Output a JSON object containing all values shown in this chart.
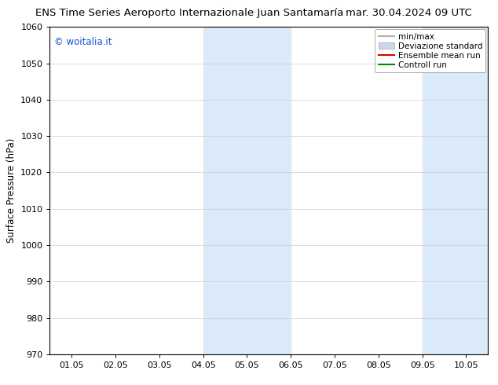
{
  "title_left": "ENS Time Series Aeroporto Internazionale Juan Santamaría",
  "title_right": "mar. 30.04.2024 09 UTC",
  "ylabel": "Surface Pressure (hPa)",
  "ylim": [
    970,
    1060
  ],
  "yticks": [
    970,
    980,
    990,
    1000,
    1010,
    1020,
    1030,
    1040,
    1050,
    1060
  ],
  "xtick_labels": [
    "01.05",
    "02.05",
    "03.05",
    "04.05",
    "05.05",
    "06.05",
    "07.05",
    "08.05",
    "09.05",
    "10.05"
  ],
  "xtick_positions": [
    0,
    1,
    2,
    3,
    4,
    5,
    6,
    7,
    8,
    9
  ],
  "xlim": [
    -0.5,
    9.5
  ],
  "shaded_bands": [
    {
      "x_start": 3.0,
      "x_end": 5.0,
      "color": "#daeaf8",
      "alpha": 1.0
    },
    {
      "x_start": 8.0,
      "x_end": 9.5,
      "color": "#daeaf8",
      "alpha": 1.0
    }
  ],
  "legend_entries": [
    {
      "label": "min/max",
      "color": "#b0b0b0",
      "lw": 1.5,
      "patch": false
    },
    {
      "label": "Deviazione standard",
      "color": "#c8d8e8",
      "lw": 8,
      "patch": true
    },
    {
      "label": "Ensemble mean run",
      "color": "#dd0000",
      "lw": 1.5,
      "patch": false
    },
    {
      "label": "Controll run",
      "color": "#008800",
      "lw": 1.5,
      "patch": false
    }
  ],
  "watermark": "© woitalia.it",
  "watermark_color": "#1155cc",
  "background_color": "#ffffff",
  "plot_bg_color": "#ffffff",
  "title_fontsize": 9.5,
  "axis_label_fontsize": 8.5,
  "tick_fontsize": 8,
  "legend_fontsize": 7.5
}
